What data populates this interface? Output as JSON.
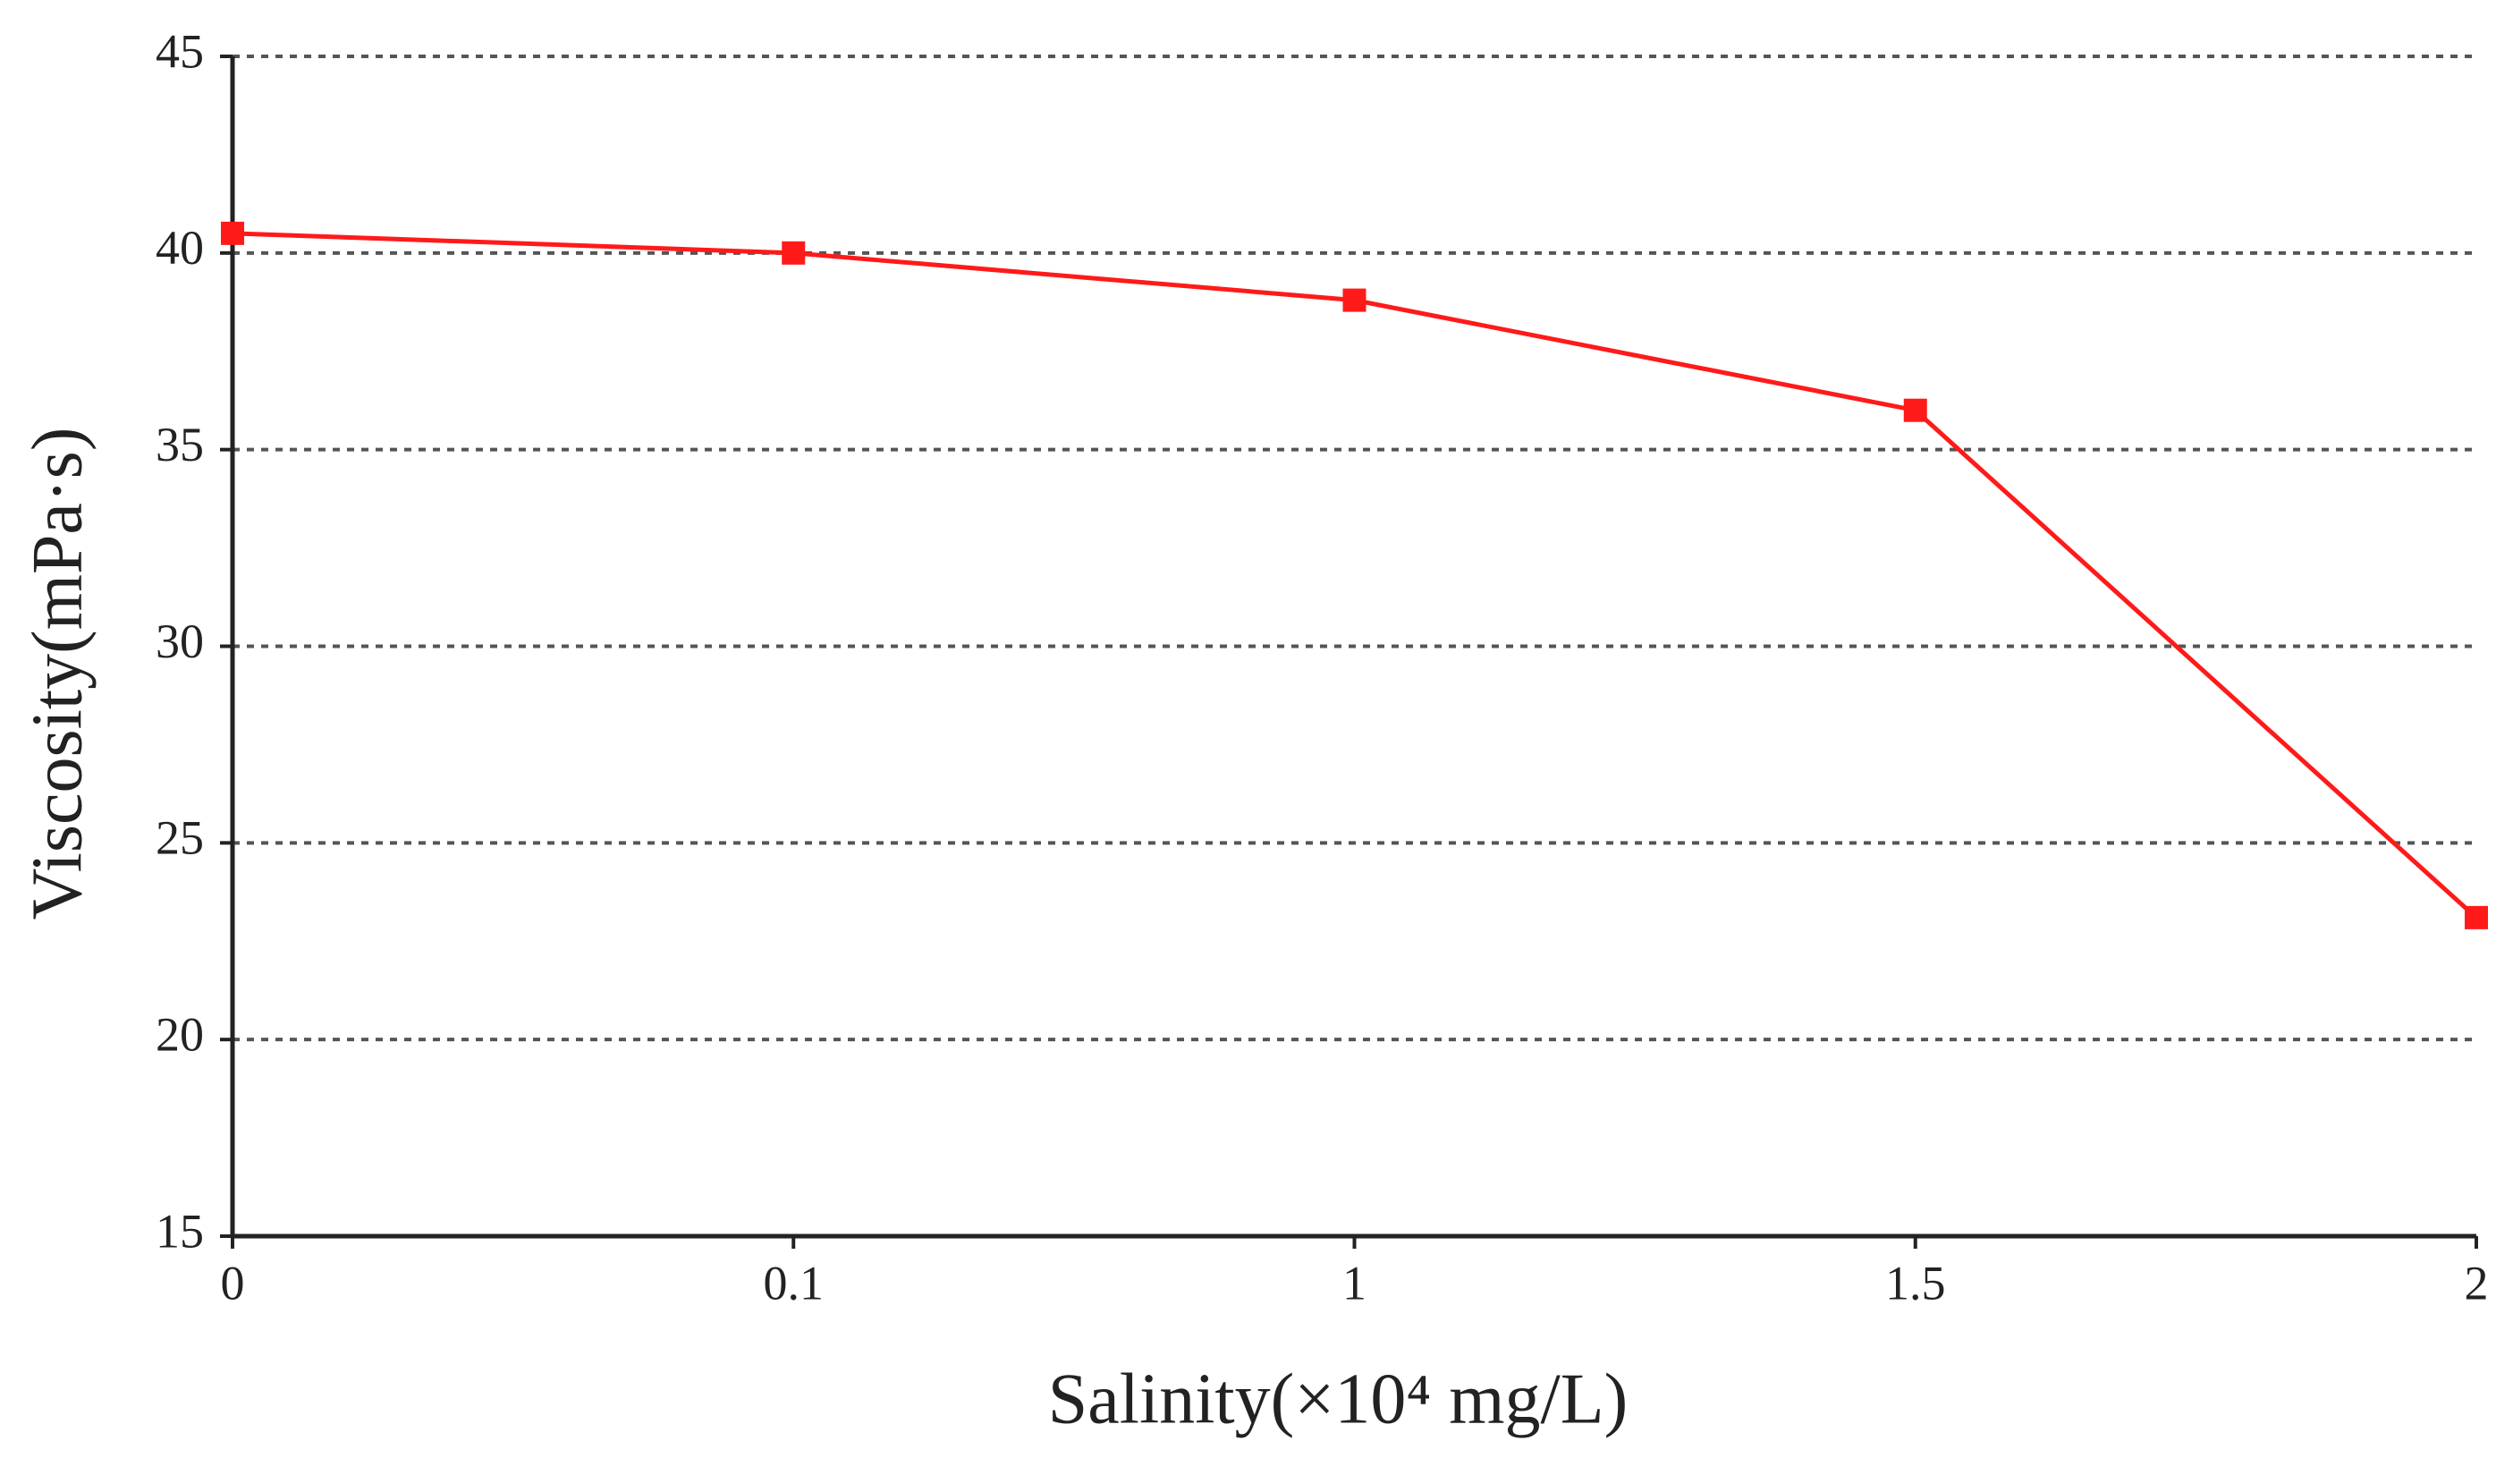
{
  "chart_data": {
    "type": "line",
    "x_label": "Salinity(×10⁴ mg/L)",
    "y_label": "Viscosity(mPa·s)",
    "categories": [
      "0",
      "0.1",
      "1",
      "1.5",
      "2"
    ],
    "series": [
      {
        "name": "Viscosity",
        "color": "#ff1a1a",
        "values": [
          40.5,
          40,
          38.8,
          36,
          23.1
        ]
      }
    ],
    "ylim": [
      15,
      45
    ],
    "yticks": [
      15,
      20,
      25,
      30,
      35,
      40,
      45
    ],
    "grid": true
  }
}
